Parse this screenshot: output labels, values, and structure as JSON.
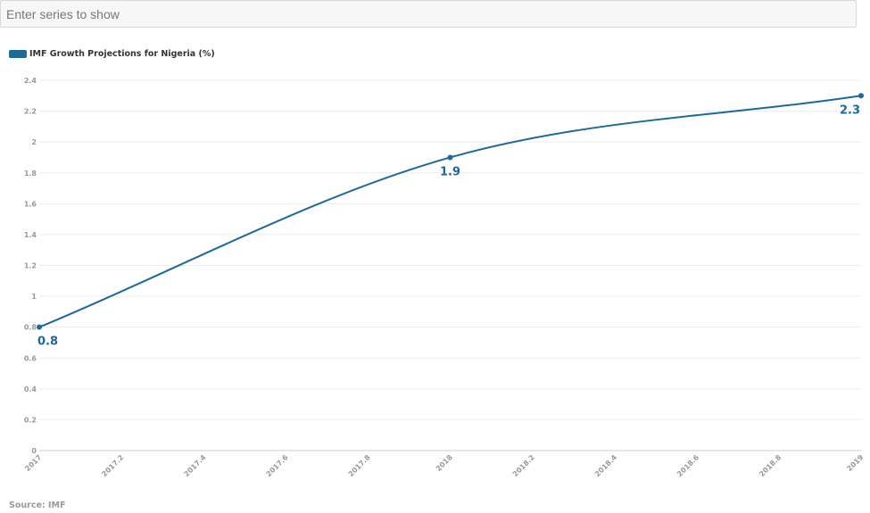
{
  "search": {
    "placeholder": "Enter series to show",
    "value": ""
  },
  "legend": {
    "label": "IMF Growth Projections for Nigeria (%)"
  },
  "source": {
    "text": "Source: IMF"
  },
  "colors": {
    "series": "#1f6a92",
    "grid": "#ececec",
    "tick": "#999999"
  },
  "chart_data": {
    "type": "line",
    "title": "",
    "xlabel": "",
    "ylabel": "",
    "xlim": [
      2017,
      2019
    ],
    "ylim": [
      0,
      2.4
    ],
    "x_ticks": [
      "2017",
      "2017.2",
      "2017.4",
      "2017.6",
      "2017.8",
      "2018",
      "2018.2",
      "2018.4",
      "2018.6",
      "2018.8",
      "2019"
    ],
    "y_ticks": [
      "0",
      "0.2",
      "0.4",
      "0.6",
      "0.8",
      "1",
      "1.2",
      "1.4",
      "1.6",
      "1.8",
      "2",
      "2.2",
      "2.4"
    ],
    "grid": true,
    "legend_position": "top-left",
    "series": [
      {
        "name": "IMF Growth Projections for Nigeria (%)",
        "x": [
          2017,
          2018,
          2019
        ],
        "values": [
          0.8,
          1.9,
          2.3
        ],
        "data_labels": [
          "0.8",
          "1.9",
          "2.3"
        ]
      }
    ]
  }
}
